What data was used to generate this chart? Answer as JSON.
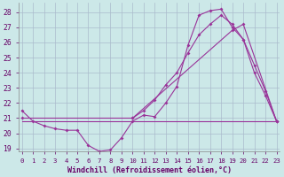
{
  "figsize": [
    3.2,
    2.0
  ],
  "dpi": 100,
  "bg_color": "#cce8e8",
  "grid_color": "#aabbcc",
  "line_color": "#993399",
  "tick_color": "#660066",
  "xlabel_color": "#660066",
  "xlabel": "Windchill (Refroidissement éolien,°C)",
  "ylim": [
    18.8,
    28.6
  ],
  "yticks": [
    19,
    20,
    21,
    22,
    23,
    24,
    25,
    26,
    27,
    28
  ],
  "xlim": [
    -0.3,
    23.3
  ],
  "xticks": [
    0,
    1,
    2,
    3,
    4,
    5,
    6,
    7,
    8,
    9,
    10,
    11,
    12,
    13,
    14,
    15,
    16,
    17,
    18,
    19,
    20,
    21,
    22,
    23
  ],
  "curve_windchill": {
    "x": [
      0,
      1,
      2,
      3,
      4,
      5,
      6,
      7,
      8,
      9,
      10,
      11,
      12,
      13,
      14,
      15,
      16,
      17,
      18,
      19,
      20,
      21,
      22,
      23
    ],
    "y": [
      21.5,
      20.8,
      20.5,
      20.3,
      20.2,
      20.2,
      19.2,
      18.8,
      18.9,
      19.7,
      20.8,
      21.2,
      21.1,
      22.0,
      23.1,
      25.8,
      27.8,
      28.1,
      28.2,
      27.0,
      26.2,
      24.0,
      22.5,
      20.8
    ]
  },
  "curve_temp_diag": {
    "x": [
      0,
      10,
      19,
      20,
      23
    ],
    "y": [
      21.0,
      21.0,
      26.8,
      27.2,
      20.8
    ]
  },
  "curve_temp_upper": {
    "x": [
      10,
      11,
      12,
      13,
      14,
      15,
      16,
      17,
      18,
      19,
      20,
      21,
      22,
      23
    ],
    "y": [
      21.0,
      21.5,
      22.2,
      23.2,
      24.0,
      25.3,
      26.5,
      27.2,
      27.8,
      27.2,
      26.2,
      24.5,
      22.8,
      20.8
    ]
  },
  "curve_flat": {
    "x": [
      0,
      1,
      10,
      23
    ],
    "y": [
      20.8,
      20.8,
      20.8,
      20.8
    ]
  }
}
